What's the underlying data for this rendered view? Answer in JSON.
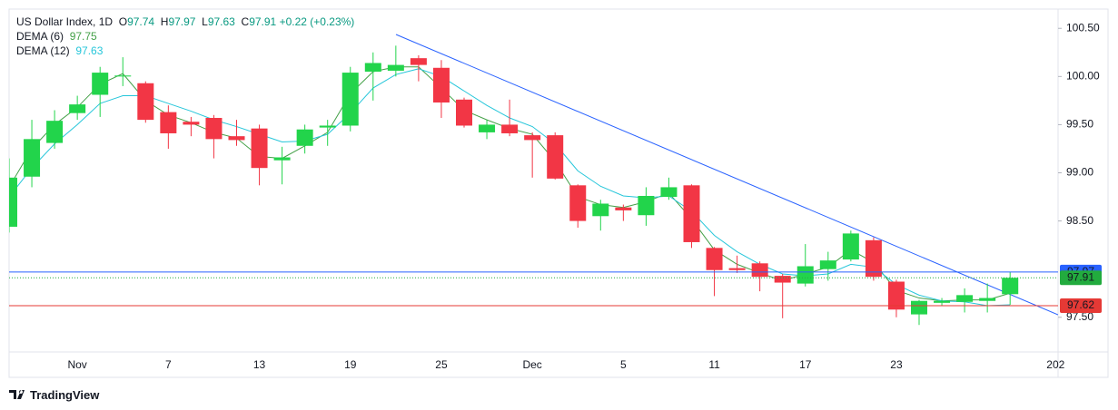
{
  "chart_data": {
    "type": "candlestick",
    "title": "US Dollar Index, 1D",
    "ohlc_labels": [
      "O",
      "H",
      "L",
      "C"
    ],
    "change": "+0.22 (+0.23%)",
    "categories": [
      null,
      null,
      null,
      "Nov",
      null,
      null,
      null,
      "7",
      null,
      null,
      null,
      "13",
      null,
      null,
      null,
      "19",
      null,
      null,
      null,
      "25",
      null,
      null,
      null,
      "Dec",
      null,
      null,
      null,
      "5",
      null,
      null,
      null,
      "11",
      null,
      null,
      null,
      "17",
      null,
      null,
      null,
      "23",
      null,
      null,
      null,
      null,
      null,
      null,
      "202"
    ],
    "open": [
      98.44,
      98.96,
      99.31,
      99.62,
      99.81,
      100.0,
      99.93,
      99.63,
      99.53,
      99.57,
      99.38,
      99.46,
      99.13,
      99.28,
      99.47,
      99.49,
      100.05,
      100.06,
      100.19,
      100.09,
      99.76,
      99.42,
      99.5,
      99.39,
      99.39,
      98.87,
      98.55,
      98.64,
      98.56,
      98.75,
      98.87,
      98.22,
      98.01,
      98.06,
      97.93,
      97.85,
      98.0,
      98.1,
      98.3,
      97.87,
      97.53,
      97.65,
      97.66,
      97.67,
      97.74,
      null,
      null
    ],
    "high": [
      99.15,
      99.55,
      99.65,
      99.8,
      100.1,
      100.2,
      99.95,
      99.7,
      99.58,
      99.6,
      99.55,
      99.5,
      99.27,
      99.5,
      99.55,
      100.1,
      100.25,
      100.32,
      100.22,
      100.17,
      99.78,
      99.55,
      99.76,
      99.42,
      99.42,
      98.88,
      98.72,
      98.67,
      98.85,
      98.95,
      98.88,
      98.23,
      98.14,
      98.08,
      97.95,
      98.26,
      98.18,
      98.4,
      98.33,
      97.89,
      97.68,
      97.7,
      97.8,
      97.85,
      97.97,
      null,
      null
    ],
    "low": [
      98.38,
      98.85,
      99.25,
      99.55,
      99.58,
      99.9,
      99.52,
      99.25,
      99.38,
      99.15,
      99.28,
      98.87,
      98.88,
      99.2,
      99.28,
      99.43,
      99.75,
      100.0,
      99.95,
      99.57,
      99.47,
      99.35,
      99.38,
      98.95,
      98.93,
      98.43,
      98.4,
      98.5,
      98.45,
      98.72,
      98.22,
      97.72,
      97.96,
      97.77,
      97.49,
      97.82,
      97.88,
      98.08,
      97.88,
      97.5,
      97.42,
      97.62,
      97.55,
      97.55,
      97.63,
      null,
      null
    ],
    "close": [
      98.95,
      99.35,
      99.54,
      99.71,
      100.04,
      100.01,
      99.55,
      99.41,
      99.5,
      99.35,
      99.34,
      99.05,
      99.16,
      99.45,
      99.49,
      100.04,
      100.14,
      100.12,
      100.12,
      99.73,
      99.49,
      99.5,
      99.41,
      99.34,
      98.94,
      98.5,
      98.68,
      98.61,
      98.76,
      98.85,
      98.28,
      97.99,
      97.99,
      97.92,
      97.86,
      98.03,
      98.09,
      98.37,
      97.92,
      97.58,
      97.67,
      97.67,
      97.73,
      97.7,
      97.91,
      null,
      null
    ],
    "up_color": "#22d44b",
    "down_color": "#f23645",
    "series": [
      {
        "name": "DEMA (6)",
        "color": "#43a047",
        "values": [
          98.85,
          99.25,
          99.5,
          99.68,
          99.92,
          100.03,
          99.75,
          99.6,
          99.52,
          99.42,
          99.36,
          99.17,
          99.15,
          99.28,
          99.42,
          99.82,
          100.05,
          100.1,
          100.1,
          99.88,
          99.65,
          99.55,
          99.46,
          99.4,
          99.12,
          98.75,
          98.67,
          98.64,
          98.7,
          98.79,
          98.52,
          98.2,
          98.05,
          97.96,
          97.88,
          97.95,
          98.02,
          98.2,
          98.07,
          97.78,
          97.7,
          97.67,
          97.68,
          97.68,
          97.75,
          null,
          null
        ]
      },
      {
        "name": "DEMA (12)",
        "color": "#26c6da",
        "values": [
          98.75,
          99.05,
          99.3,
          99.5,
          99.72,
          99.8,
          99.8,
          99.72,
          99.64,
          99.55,
          99.48,
          99.4,
          99.32,
          99.33,
          99.4,
          99.62,
          99.88,
          100.02,
          100.08,
          100.0,
          99.85,
          99.7,
          99.57,
          99.48,
          99.3,
          99.02,
          98.86,
          98.76,
          98.74,
          98.76,
          98.6,
          98.35,
          98.18,
          98.05,
          97.95,
          97.93,
          97.95,
          98.05,
          98.02,
          97.84,
          97.73,
          97.67,
          97.66,
          97.62,
          97.63,
          null,
          null
        ]
      }
    ],
    "price_lines": [
      {
        "value": 97.97,
        "color": "#2962ff",
        "dashed": false
      },
      {
        "value": 97.91,
        "color": "#22ab3e",
        "dashed": true
      },
      {
        "value": 97.62,
        "color": "#e53935",
        "dashed": false
      }
    ],
    "ylim": [
      97.14,
      100.7
    ],
    "yticks": [
      {
        "value": 97.5,
        "label": "97.50"
      },
      {
        "value": 98.5,
        "label": "98.50"
      },
      {
        "value": 99,
        "label": "99.00"
      },
      {
        "value": 99.5,
        "label": "99.50"
      },
      {
        "value": 100,
        "label": "100.00"
      },
      {
        "value": 100.5,
        "label": "100.50"
      }
    ],
    "brand": "TradingView"
  }
}
